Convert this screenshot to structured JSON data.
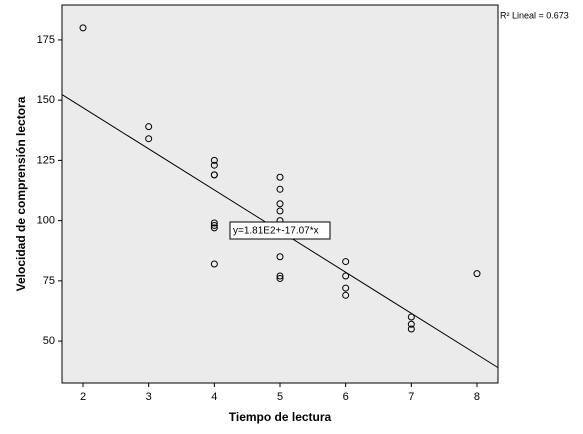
{
  "chart_data": {
    "type": "scatter",
    "x_label": "Tiempo de lectura",
    "y_label": "Velocidad de comprensión lectora",
    "x": [
      2,
      3,
      3,
      4,
      4,
      4,
      4,
      4,
      4,
      4,
      4,
      5,
      5,
      5,
      5,
      5,
      5,
      5,
      5,
      6,
      6,
      6,
      6,
      7,
      7,
      7,
      8
    ],
    "values": [
      180,
      139,
      134,
      125,
      123,
      119,
      119,
      99,
      98,
      97,
      82,
      118,
      113,
      107,
      104,
      100,
      85,
      77,
      76,
      83,
      77,
      72,
      69,
      60,
      57,
      55,
      78
    ],
    "color": "#000000",
    "xlim": [
      1.68,
      8.32
    ],
    "ylim": [
      32.6,
      189.5
    ],
    "xticks": [
      2,
      3,
      4,
      5,
      6,
      7,
      8
    ],
    "yticks": [
      50,
      75,
      100,
      125,
      150,
      175
    ],
    "fit": {
      "intercept": 181,
      "slope": -17.07
    },
    "fit_label": "y=1.81E2+-17.07*x",
    "r2_label": "R² Lineal = 0.673"
  }
}
